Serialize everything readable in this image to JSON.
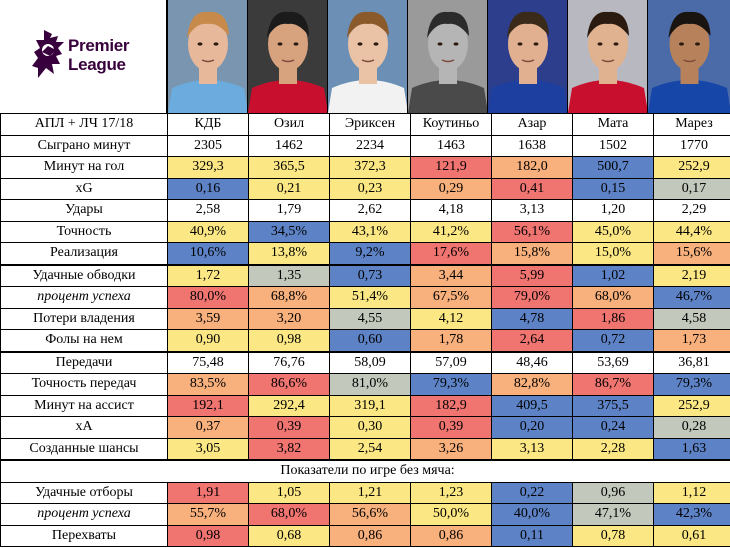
{
  "brand": {
    "logo_line1": "Premier",
    "logo_line2": "League"
  },
  "players": [
    {
      "name": "КДБ",
      "shirt": "#6cabdd",
      "bg": "#7a95b0",
      "skin": "#e7b89a",
      "hair": "#c88a4a",
      "grey": false
    },
    {
      "name": "Озил",
      "shirt": "#c8102e",
      "bg": "#3b3b3b",
      "skin": "#d7a27e",
      "hair": "#1b1b1b",
      "grey": false
    },
    {
      "name": "Эриксен",
      "shirt": "#f2f2f2",
      "bg": "#6b8fb5",
      "skin": "#eac2a5",
      "hair": "#8a5a2b",
      "grey": false
    },
    {
      "name": "Коутиньо",
      "shirt": "#4a4a4a",
      "bg": "#9a9a9a",
      "skin": "#b5b5b5",
      "hair": "#2b2b2b",
      "grey": true
    },
    {
      "name": "Азар",
      "shirt": "#1d3fa0",
      "bg": "#2c3e8c",
      "skin": "#e0b090",
      "hair": "#3a2a1a",
      "grey": false
    },
    {
      "name": "Мата",
      "shirt": "#c8102e",
      "bg": "#b8b8c0",
      "skin": "#e1b28f",
      "hair": "#2a1a10",
      "grey": false
    },
    {
      "name": "Марез",
      "shirt": "#1646a8",
      "bg": "#4a6ba8",
      "skin": "#b7825b",
      "hair": "#1a1410",
      "grey": false
    }
  ],
  "colors": {
    "red": "#f07470",
    "orange": "#f8b07c",
    "yellow": "#fbe784",
    "grey": "#c2c8bc",
    "blue": "#5d83c6",
    "white": "#ffffff"
  },
  "rows": [
    {
      "label": "АПЛ + ЛЧ 17/18",
      "italic": false,
      "values": [
        "КДБ",
        "Озил",
        "Эриксен",
        "Коутиньо",
        "Азар",
        "Мата",
        "Марез"
      ],
      "colors": [
        "white",
        "white",
        "white",
        "white",
        "white",
        "white",
        "white"
      ]
    },
    {
      "label": "Сыграно минут",
      "italic": false,
      "values": [
        "2305",
        "1462",
        "2234",
        "1463",
        "1638",
        "1502",
        "1770"
      ],
      "colors": [
        "white",
        "white",
        "white",
        "white",
        "white",
        "white",
        "white"
      ]
    },
    {
      "label": "Минут на гол",
      "italic": false,
      "values": [
        "329,3",
        "365,5",
        "372,3",
        "121,9",
        "182,0",
        "500,7",
        "252,9"
      ],
      "colors": [
        "yellow",
        "yellow",
        "yellow",
        "red",
        "orange",
        "blue",
        "yellow"
      ]
    },
    {
      "label": "xG",
      "italic": false,
      "values": [
        "0,16",
        "0,21",
        "0,23",
        "0,29",
        "0,41",
        "0,15",
        "0,17"
      ],
      "colors": [
        "blue",
        "yellow",
        "yellow",
        "orange",
        "red",
        "blue",
        "grey"
      ]
    },
    {
      "label": "Удары",
      "italic": false,
      "values": [
        "2,58",
        "1,79",
        "2,62",
        "4,18",
        "3,13",
        "1,20",
        "2,29"
      ],
      "colors": [
        "white",
        "white",
        "white",
        "white",
        "white",
        "white",
        "white"
      ]
    },
    {
      "label": "Точность",
      "italic": false,
      "values": [
        "40,9%",
        "34,5%",
        "43,1%",
        "41,2%",
        "56,1%",
        "45,0%",
        "44,4%"
      ],
      "colors": [
        "yellow",
        "blue",
        "yellow",
        "yellow",
        "red",
        "yellow",
        "yellow"
      ]
    },
    {
      "label": "Реализация",
      "italic": false,
      "values": [
        "10,6%",
        "13,8%",
        "9,2%",
        "17,6%",
        "15,8%",
        "15,0%",
        "15,6%"
      ],
      "colors": [
        "blue",
        "yellow",
        "blue",
        "red",
        "orange",
        "yellow",
        "orange"
      ]
    },
    {
      "label": "Удачные обводки",
      "italic": false,
      "thick": true,
      "values": [
        "1,72",
        "1,35",
        "0,73",
        "3,44",
        "5,99",
        "1,02",
        "2,19"
      ],
      "colors": [
        "yellow",
        "grey",
        "blue",
        "orange",
        "red",
        "blue",
        "yellow"
      ]
    },
    {
      "label": "процент успеха",
      "italic": true,
      "values": [
        "80,0%",
        "68,8%",
        "51,4%",
        "67,5%",
        "79,0%",
        "68,0%",
        "46,7%"
      ],
      "colors": [
        "red",
        "orange",
        "yellow",
        "orange",
        "red",
        "orange",
        "blue"
      ]
    },
    {
      "label": "Потери владения",
      "italic": false,
      "values": [
        "3,59",
        "3,20",
        "4,55",
        "4,12",
        "4,78",
        "1,86",
        "4,58"
      ],
      "colors": [
        "orange",
        "orange",
        "grey",
        "yellow",
        "blue",
        "red",
        "grey"
      ]
    },
    {
      "label": "Фолы на нем",
      "italic": false,
      "values": [
        "0,90",
        "0,98",
        "0,60",
        "1,78",
        "2,64",
        "0,72",
        "1,73"
      ],
      "colors": [
        "yellow",
        "yellow",
        "blue",
        "orange",
        "red",
        "blue",
        "orange"
      ]
    },
    {
      "label": "Передачи",
      "italic": false,
      "thick": true,
      "values": [
        "75,48",
        "76,76",
        "58,09",
        "57,09",
        "48,46",
        "53,69",
        "36,81"
      ],
      "colors": [
        "white",
        "white",
        "white",
        "white",
        "white",
        "white",
        "white"
      ]
    },
    {
      "label": "Точность передач",
      "italic": false,
      "values": [
        "83,5%",
        "86,6%",
        "81,0%",
        "79,3%",
        "82,8%",
        "86,7%",
        "79,3%"
      ],
      "colors": [
        "orange",
        "red",
        "grey",
        "blue",
        "orange",
        "red",
        "blue"
      ]
    },
    {
      "label": "Минут на ассист",
      "italic": false,
      "values": [
        "192,1",
        "292,4",
        "319,1",
        "182,9",
        "409,5",
        "375,5",
        "252,9"
      ],
      "colors": [
        "red",
        "yellow",
        "yellow",
        "red",
        "blue",
        "blue",
        "yellow"
      ]
    },
    {
      "label": "xA",
      "italic": false,
      "values": [
        "0,37",
        "0,39",
        "0,30",
        "0,39",
        "0,20",
        "0,24",
        "0,28"
      ],
      "colors": [
        "orange",
        "red",
        "yellow",
        "red",
        "blue",
        "blue",
        "grey"
      ]
    },
    {
      "label": "Созданные шансы",
      "italic": false,
      "values": [
        "3,05",
        "3,82",
        "2,54",
        "3,26",
        "3,13",
        "2,28",
        "1,63"
      ],
      "colors": [
        "yellow",
        "red",
        "yellow",
        "orange",
        "yellow",
        "yellow",
        "blue"
      ]
    }
  ],
  "section_title": "Показатели по игре без мяча:",
  "rows2": [
    {
      "label": "Удачные отборы",
      "italic": false,
      "values": [
        "1,91",
        "1,05",
        "1,21",
        "1,23",
        "0,22",
        "0,96",
        "1,12"
      ],
      "colors": [
        "red",
        "yellow",
        "yellow",
        "yellow",
        "blue",
        "grey",
        "yellow"
      ]
    },
    {
      "label": "процент успеха",
      "italic": true,
      "values": [
        "55,7%",
        "68,0%",
        "56,6%",
        "50,0%",
        "40,0%",
        "47,1%",
        "42,3%"
      ],
      "colors": [
        "orange",
        "red",
        "orange",
        "yellow",
        "blue",
        "grey",
        "blue"
      ]
    },
    {
      "label": "Перехваты",
      "italic": false,
      "values": [
        "0,98",
        "0,68",
        "0,86",
        "0,86",
        "0,11",
        "0,78",
        "0,61"
      ],
      "colors": [
        "red",
        "yellow",
        "orange",
        "orange",
        "blue",
        "yellow",
        "yellow"
      ]
    }
  ]
}
